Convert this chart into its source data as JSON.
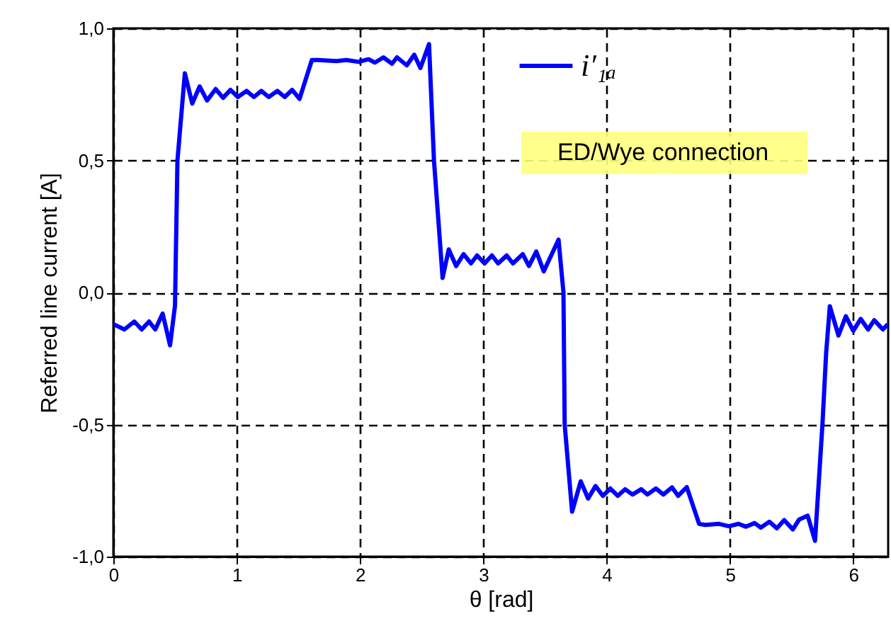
{
  "chart_data": {
    "type": "line",
    "xlabel": "θ [rad]",
    "ylabel": "Referred line current [A]",
    "xlim": [
      0,
      6.283
    ],
    "xticks": [
      0,
      1,
      2,
      3,
      4,
      5,
      6
    ],
    "ylim": [
      -1,
      1
    ],
    "yticks": [
      {
        "value": -1,
        "label": "-1,0"
      },
      {
        "value": -0.5,
        "label": "-0,5"
      },
      {
        "value": 0,
        "label": "0,0"
      },
      {
        "value": 0.5,
        "label": "0,5"
      },
      {
        "value": 1,
        "label": "1,0"
      }
    ],
    "grid": true,
    "legend": "top right",
    "line_style": "solid",
    "marker": "none",
    "annotations": [
      "ED/Wye connection"
    ],
    "series": [
      {
        "name": "i′₁ₐ",
        "color": "#0000ff",
        "x": [
          0,
          0.09,
          0.17,
          0.23,
          0.29,
          0.34,
          0.4,
          0.46,
          0.5,
          0.52,
          0.58,
          0.64,
          0.7,
          0.76,
          0.83,
          0.89,
          0.95,
          1.01,
          1.08,
          1.14,
          1.2,
          1.26,
          1.33,
          1.39,
          1.45,
          1.51,
          1.61,
          1.66,
          1.81,
          1.89,
          1.99,
          2.07,
          2.12,
          2.19,
          2.26,
          2.3,
          2.38,
          2.44,
          2.49,
          2.56,
          2.6,
          2.63,
          2.67,
          2.72,
          2.78,
          2.84,
          2.9,
          2.95,
          3.01,
          3.07,
          3.12,
          3.19,
          3.24,
          3.32,
          3.37,
          3.43,
          3.49,
          3.61,
          3.65,
          3.66,
          3.72,
          3.79,
          3.85,
          3.91,
          3.97,
          4.03,
          4.09,
          4.15,
          4.21,
          4.28,
          4.33,
          4.4,
          4.46,
          4.53,
          4.58,
          4.65,
          4.75,
          4.8,
          4.91,
          4.99,
          5.07,
          5.13,
          5.2,
          5.25,
          5.32,
          5.38,
          5.44,
          5.51,
          5.56,
          5.63,
          5.69,
          5.75,
          5.78,
          5.81,
          5.88,
          5.94,
          6.0,
          6.06,
          6.12,
          6.17,
          6.24,
          6.28
        ],
        "values": [
          -0.12,
          -0.14,
          -0.11,
          -0.14,
          -0.11,
          -0.14,
          -0.08,
          -0.2,
          -0.05,
          0.5,
          0.83,
          0.715,
          0.78,
          0.727,
          0.77,
          0.737,
          0.767,
          0.74,
          0.763,
          0.74,
          0.763,
          0.74,
          0.763,
          0.74,
          0.767,
          0.733,
          0.88,
          0.88,
          0.876,
          0.88,
          0.873,
          0.883,
          0.87,
          0.89,
          0.866,
          0.89,
          0.86,
          0.9,
          0.85,
          0.94,
          0.5,
          0.31,
          0.055,
          0.163,
          0.1,
          0.145,
          0.11,
          0.14,
          0.11,
          0.14,
          0.11,
          0.14,
          0.11,
          0.145,
          0.1,
          0.155,
          0.08,
          0.2,
          0.0,
          -0.5,
          -0.83,
          -0.715,
          -0.78,
          -0.733,
          -0.77,
          -0.742,
          -0.77,
          -0.745,
          -0.765,
          -0.745,
          -0.765,
          -0.742,
          -0.765,
          -0.738,
          -0.77,
          -0.737,
          -0.876,
          -0.88,
          -0.876,
          -0.885,
          -0.876,
          -0.887,
          -0.873,
          -0.89,
          -0.868,
          -0.893,
          -0.862,
          -0.897,
          -0.86,
          -0.845,
          -0.94,
          -0.5,
          -0.23,
          -0.052,
          -0.163,
          -0.09,
          -0.145,
          -0.1,
          -0.14,
          -0.105,
          -0.14,
          -0.12
        ]
      }
    ]
  }
}
